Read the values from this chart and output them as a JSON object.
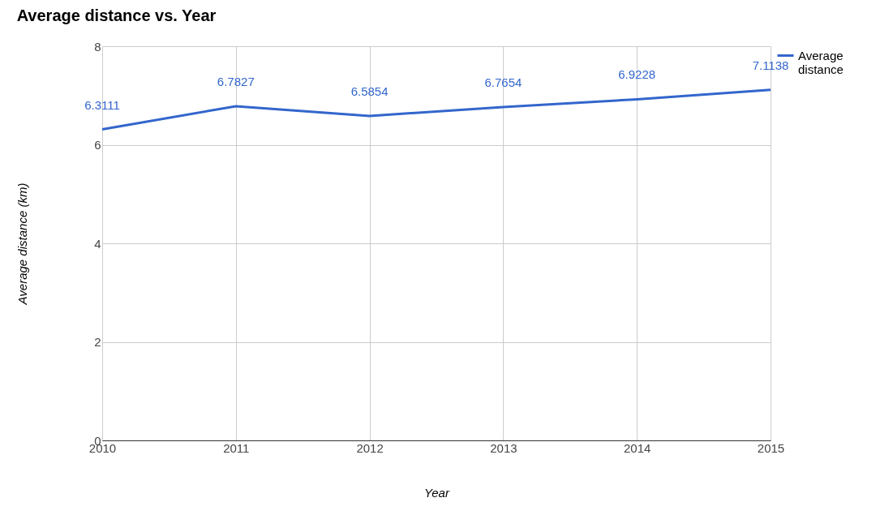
{
  "chart_data": {
    "type": "line",
    "title": "Average distance vs. Year",
    "xlabel": "Year",
    "ylabel": "Average distance (km)",
    "x": [
      2010,
      2011,
      2012,
      2013,
      2014,
      2015
    ],
    "series": [
      {
        "name": "Average distance",
        "color": "#3366cc",
        "values": [
          6.3111,
          6.7827,
          6.5854,
          6.7654,
          6.9228,
          7.1138
        ]
      }
    ],
    "xlim": [
      2010,
      2015
    ],
    "xticks": [
      2010,
      2011,
      2012,
      2013,
      2014,
      2015
    ],
    "ylim": [
      0,
      8
    ],
    "yticks": [
      0,
      2,
      4,
      6,
      8
    ],
    "grid": true,
    "legend": "top right",
    "data_labels": true,
    "marker": "none",
    "line_style": "solid"
  }
}
